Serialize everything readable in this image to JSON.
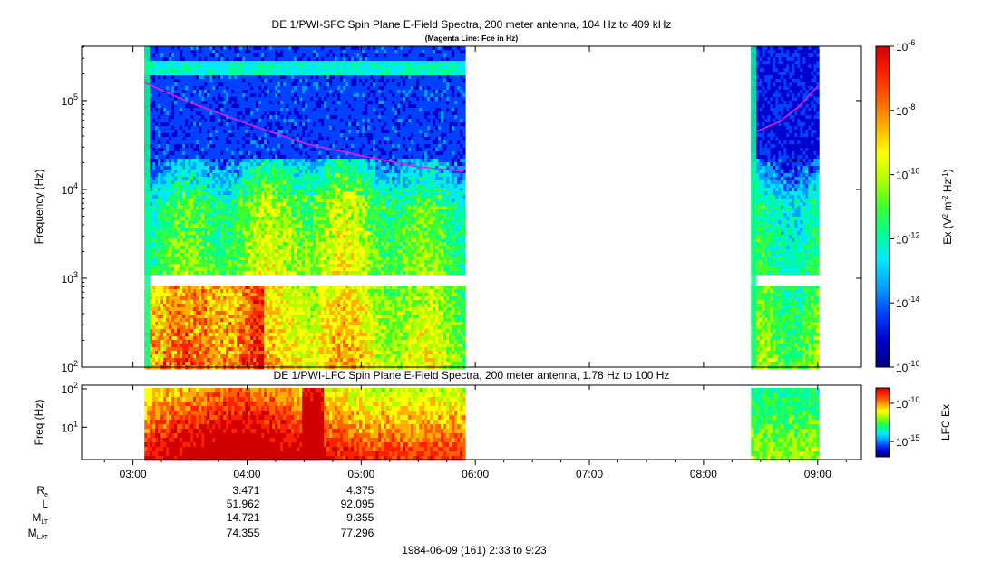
{
  "chart_data": [
    {
      "type": "heatmap",
      "title": "DE 1/PWI-SFC  Spin Plane E-Field Spectra, 200 meter antenna, 104 Hz to 409 kHz",
      "subtitle": "(Magenta Line: Fce in Hz)",
      "ylabel": "Frequency (Hz)",
      "yscale": "log",
      "ylim": [
        100,
        409000
      ],
      "yticks": [
        {
          "value": 100,
          "base": "10",
          "exp": "2"
        },
        {
          "value": 1000,
          "base": "10",
          "exp": "3"
        },
        {
          "value": 10000,
          "base": "10",
          "exp": "4"
        },
        {
          "value": 100000,
          "base": "10",
          "exp": "5"
        }
      ],
      "xlim": [
        "02:33",
        "09:23"
      ],
      "data_intervals": [
        [
          "03:06",
          "05:54"
        ],
        [
          "08:25",
          "09:00"
        ]
      ],
      "gap_band_hz": [
        880,
        1050
      ],
      "colorbar": {
        "label_prefix": "Ex (V",
        "label_sup1": "2",
        "label_mid": " m",
        "label_sup2": "-2",
        "label_mid2": " Hz",
        "label_sup3": "-1",
        "label_suffix": ")",
        "scale": "log",
        "range": [
          1e-16,
          1e-06
        ],
        "ticks": [
          {
            "value": 1e-06,
            "base": "10",
            "exp": "-6"
          },
          {
            "value": 1e-08,
            "base": "10",
            "exp": "-8"
          },
          {
            "value": 1e-10,
            "base": "10",
            "exp": "-10"
          },
          {
            "value": 1e-12,
            "base": "10",
            "exp": "-12"
          },
          {
            "value": 1e-14,
            "base": "10",
            "exp": "-14"
          },
          {
            "value": 1e-16,
            "base": "10",
            "exp": "-16"
          }
        ]
      },
      "fce_line": {
        "color": "#e020e0",
        "segments": [
          [
            [
              "03:06",
              160000
            ],
            [
              "03:30",
              95000
            ],
            [
              "04:00",
              55000
            ],
            [
              "04:30",
              33000
            ],
            [
              "05:00",
              24000
            ],
            [
              "05:30",
              18000
            ],
            [
              "05:54",
              16000
            ]
          ],
          [
            [
              "08:28",
              45000
            ],
            [
              "08:40",
              58000
            ],
            [
              "08:50",
              85000
            ],
            [
              "09:00",
              145000
            ]
          ]
        ]
      }
    },
    {
      "type": "heatmap",
      "title": "DE 1/PWI-LFC  Spin Plane E-Field Spectra, 200 meter antenna, 1.78 Hz to 100 Hz",
      "ylabel": "Freq (Hz)",
      "yscale": "log",
      "ylim": [
        1.78,
        100
      ],
      "yticks": [
        {
          "value": 10,
          "base": "10",
          "exp": "1"
        },
        {
          "value": 100,
          "base": "10",
          "exp": "2"
        }
      ],
      "xlim": [
        "02:33",
        "09:23"
      ],
      "data_intervals": [
        [
          "03:06",
          "05:54"
        ],
        [
          "08:25",
          "09:00"
        ]
      ],
      "colorbar": {
        "label": "LFC Ex",
        "scale": "log",
        "ticks": [
          {
            "value": 1e-10,
            "base": "10",
            "exp": "-10"
          },
          {
            "value": 1e-15,
            "base": "10",
            "exp": "-15"
          }
        ]
      },
      "xticks": [
        "03:00",
        "04:00",
        "05:00",
        "06:00",
        "07:00",
        "08:00",
        "09:00"
      ]
    }
  ],
  "ephemeris": {
    "labels": [
      {
        "base": "R",
        "sub": "e"
      },
      {
        "base": "L",
        "sub": ""
      },
      {
        "base": "M",
        "sub": "LT"
      },
      {
        "base": "M",
        "sub": "LAT"
      }
    ],
    "columns": [
      {
        "time": "04:00",
        "values": [
          "3.471",
          "51.962",
          "14.721",
          "74.355"
        ]
      },
      {
        "time": "05:00",
        "values": [
          "4.375",
          "92.095",
          "9.355",
          "77.296"
        ]
      }
    ]
  },
  "footer": "1984-06-09 (161) 2:33 to 9:23",
  "colors": {
    "colormap": [
      "#000080",
      "#0000cd",
      "#0040ff",
      "#00a0ff",
      "#00e8ff",
      "#00ff90",
      "#40ff30",
      "#b0ff00",
      "#ffff00",
      "#ffb000",
      "#ff6000",
      "#ff2000",
      "#d00000"
    ]
  }
}
